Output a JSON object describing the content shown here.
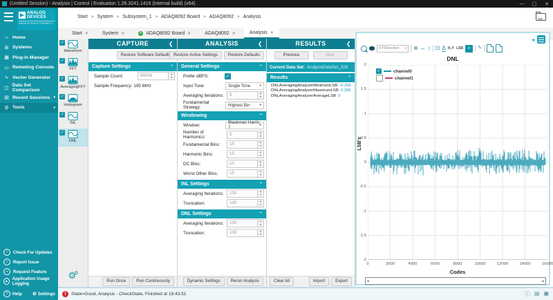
{
  "titlebar": {
    "title": "(Untitled Session) - Analysis | Control | Evaluation 1.26.3241.1416 (internal build) (x64)",
    "minimize": "—",
    "maximize": "▢",
    "close": "✕"
  },
  "logo": {
    "line1": "ANALOG",
    "line2": "DEVICES",
    "tagline": "AHEAD OF WHAT'S POSSIBLE™"
  },
  "breadcrumb": {
    "separator": ">",
    "items": [
      "Start",
      "System",
      "Subsystem_1",
      "ADAQ8092 Board",
      "ADAQ8092",
      "Analysis"
    ]
  },
  "tabs": {
    "close_glyph": "✕",
    "items": [
      {
        "label": "Start"
      },
      {
        "label": "System"
      },
      {
        "label": "ADAQ8092 Board",
        "dot": "+"
      },
      {
        "label": "ADAQ8092"
      },
      {
        "label": "Analysis"
      }
    ]
  },
  "sidebar": {
    "items": [
      {
        "label": "Home",
        "icon": "⌂"
      },
      {
        "label": "Systems",
        "icon": "⊞"
      },
      {
        "label": "Plug-in Manager",
        "icon": "▦"
      },
      {
        "label": "Remoting Console",
        "icon": "▭"
      },
      {
        "label": "Vector Generator",
        "icon": "∿"
      },
      {
        "label": "Data Set Comparison",
        "icon": "◫"
      },
      {
        "label": "Recent Sessions",
        "icon": "▤",
        "chevron": "▾"
      },
      {
        "label": "Tools",
        "icon": "⚙",
        "chevron": "▾"
      }
    ],
    "footer_items": [
      {
        "label": "Check For Updates",
        "icon": "!"
      },
      {
        "label": "Report Issue",
        "icon": "i"
      },
      {
        "label": "Request Feature",
        "icon": "+"
      },
      {
        "label": "Application Usage Logging",
        "icon": "▲"
      }
    ],
    "help_label": "Help",
    "settings_label": "Settings",
    "settings_icon": "⚙"
  },
  "plugin_sidebar": {
    "check_glyph": "✓",
    "items": [
      {
        "label": "Waveform"
      },
      {
        "label": "FFT"
      },
      {
        "label": "AveragingFFT"
      },
      {
        "label": "Histogram"
      },
      {
        "label": "INL"
      },
      {
        "label": "DNL"
      }
    ]
  },
  "capture": {
    "title": "CAPTURE",
    "collapse": "❮",
    "restore_defaults_button": "Restore Software Defaults",
    "section_label": "Capture Settings",
    "section_caret": "⌃",
    "sample_count_label": "Sample Count:",
    "sample_count_value": "65536",
    "sample_frequency_label": "Sample Frequency:",
    "sample_frequency_value": "105 MHz",
    "run_once_button": "Run Once",
    "run_continuously_button": "Run Continuously"
  },
  "analysis": {
    "title": "ANALYSIS",
    "collapse": "❮",
    "restore_active_button": "Restore Active Settings",
    "restore_defaults_button": "Restore Defaults",
    "general": {
      "label": "General Settings",
      "caret": "⌃",
      "prefer_dbfs_label": "Prefer dBFS:",
      "input_tone_label": "Input Tone:",
      "input_tone_value": "Single Tone",
      "averaging_iterations_label": "Averaging Iterations:",
      "averaging_iterations_value": "5",
      "fundamental_strategy_label": "Fundamental Strategy:",
      "fundamental_strategy_value": "Highest Bin"
    },
    "windowing": {
      "label": "Windowing",
      "caret": "⌃",
      "window_label": "Window:",
      "window_value": "Blackman Harris 7",
      "num_harmonics_label": "Number of Harmonics:",
      "num_harmonics_value": "5",
      "fundamental_bins_label": "Fundamental Bins:",
      "fundamental_bins_value": "15",
      "harmonic_bins_label": "Harmonic Bins:",
      "harmonic_bins_value": "15",
      "dc_bins_label": "DC Bins:",
      "dc_bins_value": "10",
      "worst_other_bins_label": "Worst Other Bins:",
      "worst_other_bins_value": "15"
    },
    "inl": {
      "label": "INL Settings",
      "caret": "⌃",
      "averaging_iterations_label": "Averaging Iterations:",
      "averaging_iterations_value": "100",
      "truncation_label": "Truncation:",
      "truncation_value": "100"
    },
    "dnl": {
      "label": "DNL Settings",
      "caret": "⌃",
      "averaging_iterations_label": "Averaging Iterations:",
      "averaging_iterations_value": "100",
      "truncation_label": "Truncation:",
      "truncation_value": "100"
    },
    "dynamic_settings_button": "Dynamic Settings",
    "rerun_analysis_button": "Rerun Analysis"
  },
  "results": {
    "title": "RESULTS",
    "collapse": "❮",
    "previous_button": "Previous",
    "next_button": "Next",
    "current_data_set_label": "Current Data Set:",
    "current_data_set_value": "AnalysisDataSet_226",
    "section_label": "Results",
    "section_caret": "⌃",
    "rows": [
      {
        "name": "DNLAveragingAnalyzerMinimumLSB",
        "value": "-0.266"
      },
      {
        "name": "DNLAveragingAnalyzerMaximumLSB",
        "value": "0.296"
      },
      {
        "name": "DNLAveragingAnalyzerAverageLSB",
        "value": "0"
      }
    ],
    "clear_all_button": "Clear All",
    "import_button": "Import",
    "export_button": "Export"
  },
  "chart": {
    "toolbar": {
      "xy_direction_label": "XYDirection",
      "xy_label": "X,Y",
      "unit_label": "LSB"
    },
    "title": "DNL"
  },
  "chart_data": {
    "type": "line",
    "title": "DNL",
    "xlabel": "Codes",
    "ylabel": "LSB's",
    "xlim": [
      0,
      16383
    ],
    "ylim": [
      -2,
      2
    ],
    "x_tick_labels": [
      "0",
      "2000",
      "4000",
      "6000",
      "8000",
      "10000",
      "12000",
      "14000",
      "16000"
    ],
    "y_tick_labels": [
      "2",
      "1.5",
      "1",
      "0.5",
      "0",
      "-0.5",
      "-1",
      "-1.5",
      "-2"
    ],
    "grid": true,
    "legend_position": "top-left",
    "series": [
      {
        "name": "channel0",
        "color": "#1792ad",
        "visible": true,
        "kind": "dnl-noise-band",
        "points": 16384,
        "mean": 0,
        "min": -0.266,
        "max": 0.296,
        "typical_amplitude": 0.15
      },
      {
        "name": "channel1",
        "color": "#c0435c",
        "visible": false
      }
    ],
    "stats": {
      "minimum_lsb": -0.266,
      "maximum_lsb": 0.296,
      "average_lsb": 0
    }
  },
  "statusbar": {
    "text": "State=Good, Analysis - CheckState, Finished at 16:43:51"
  }
}
